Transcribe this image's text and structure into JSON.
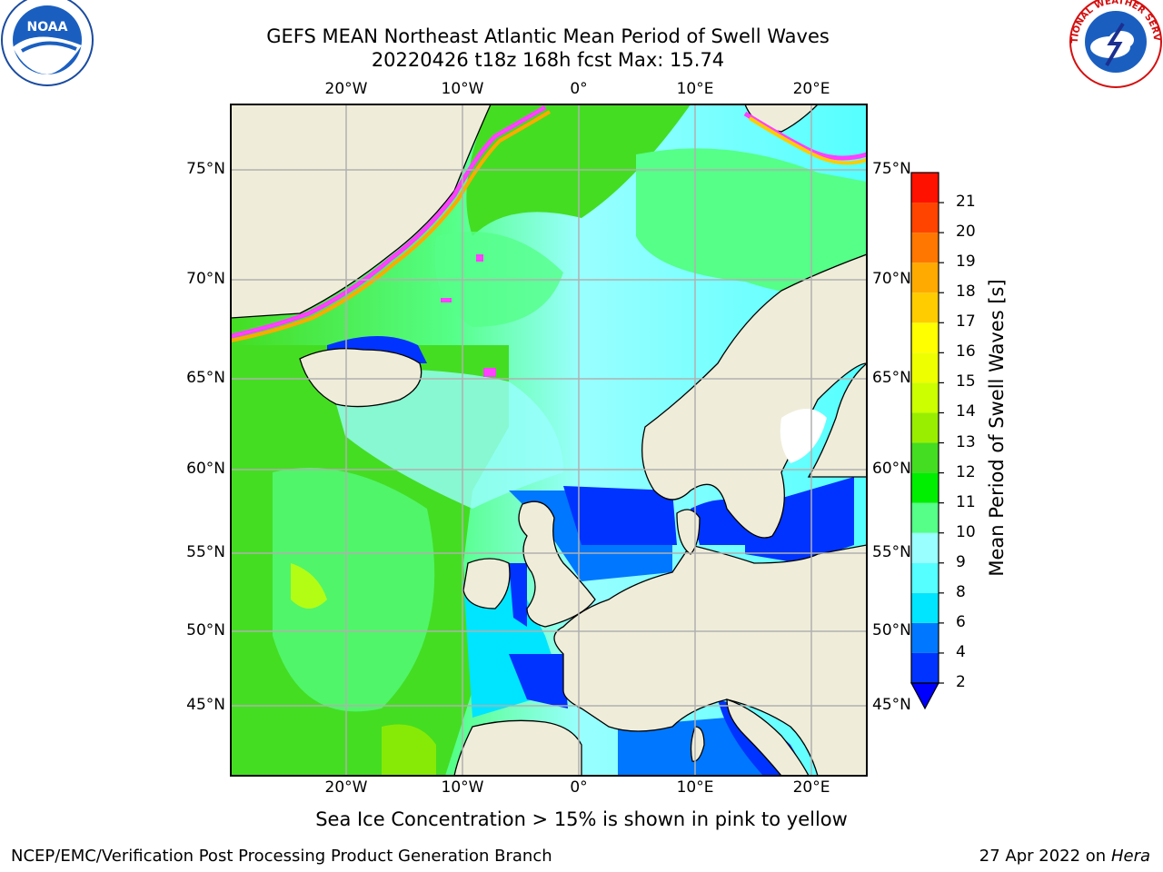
{
  "header": {
    "title_line1": "GEFS MEAN Northeast Atlantic Mean Period of Swell Waves",
    "title_line2": "20220426 t18z 168h fcst   Max: 15.74"
  },
  "logos": {
    "noaa_text": "NOAA",
    "nws_text": "NATIONAL WEATHER SERVICE"
  },
  "map": {
    "lon_ticks_top": [
      "20°W",
      "10°W",
      "0°",
      "10°E",
      "20°E"
    ],
    "lon_ticks_bottom": [
      "20°W",
      "10°W",
      "0°",
      "10°E",
      "20°E"
    ],
    "lat_ticks_left": [
      "75°N",
      "70°N",
      "65°N",
      "60°N",
      "55°N",
      "50°N",
      "45°N"
    ],
    "lat_ticks_right": [
      "75°N",
      "70°N",
      "65°N",
      "60°N",
      "55°N",
      "50°N",
      "45°N"
    ],
    "land_color": "#efedd9",
    "ice_color": "#ff40ff"
  },
  "colorbar": {
    "title": "Mean Period of Swell Waves [s]",
    "levels": [
      "2",
      "4",
      "6",
      "8",
      "9",
      "10",
      "11",
      "12",
      "13",
      "14",
      "15",
      "16",
      "17",
      "18",
      "19",
      "20",
      "21"
    ],
    "colors": [
      "#0033ff",
      "#0077ff",
      "#00e5ff",
      "#55ffff",
      "#99ffff",
      "#55ff88",
      "#00ee00",
      "#44dd22",
      "#99ee00",
      "#ccff00",
      "#eeff00",
      "#ffff00",
      "#ffcc00",
      "#ffaa00",
      "#ff7700",
      "#ff4400",
      "#ff1100"
    ],
    "under_color": "#0000ff"
  },
  "footer": {
    "note": "Sea Ice Concentration > 15% is shown in pink to yellow",
    "left": "NCEP/EMC/Verification Post Processing Product Generation Branch",
    "right_prefix": "27 Apr 2022 on ",
    "right_host": "Hera"
  }
}
